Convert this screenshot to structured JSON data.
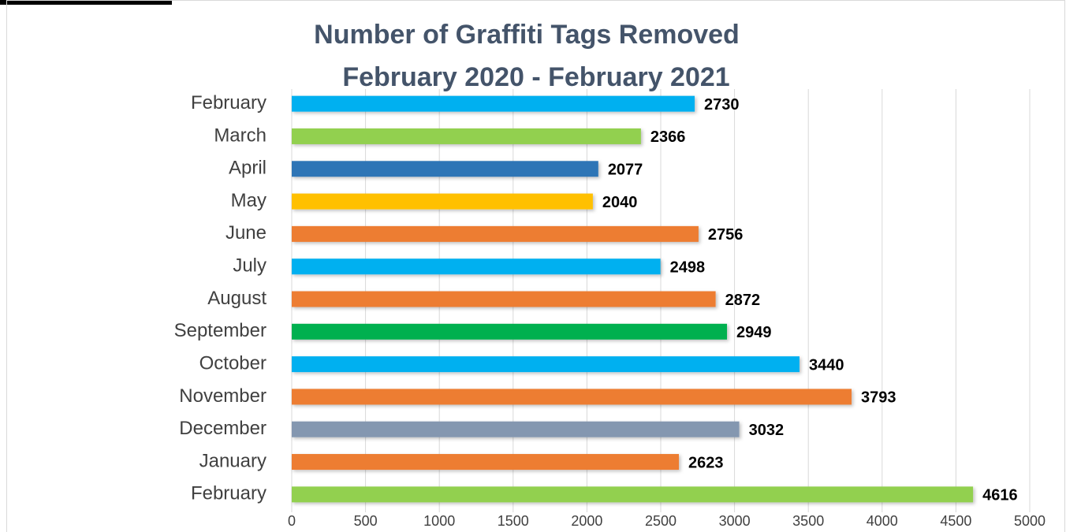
{
  "chart_data": {
    "type": "bar",
    "orientation": "horizontal",
    "title": [
      "Number of Graffiti Tags Removed",
      "February 2020 - February 2021"
    ],
    "categories": [
      "February",
      "March",
      "April",
      "May",
      "June",
      "July",
      "August",
      "September",
      "October",
      "November",
      "December",
      "January",
      "February"
    ],
    "values": [
      2730,
      2366,
      2077,
      2040,
      2756,
      2498,
      2872,
      2949,
      3440,
      3793,
      3032,
      2623,
      4616
    ],
    "colors": [
      "#00b0f0",
      "#92d050",
      "#2e75b6",
      "#ffc000",
      "#ed7d31",
      "#00b0f0",
      "#ed7d31",
      "#00b050",
      "#00b0f0",
      "#ed7d31",
      "#8497b0",
      "#ed7d31",
      "#92d050"
    ],
    "xlim": [
      0,
      5000
    ],
    "xticks": [
      0,
      500,
      1000,
      1500,
      2000,
      2500,
      3000,
      3500,
      4000,
      4500,
      5000
    ],
    "grid": true
  }
}
